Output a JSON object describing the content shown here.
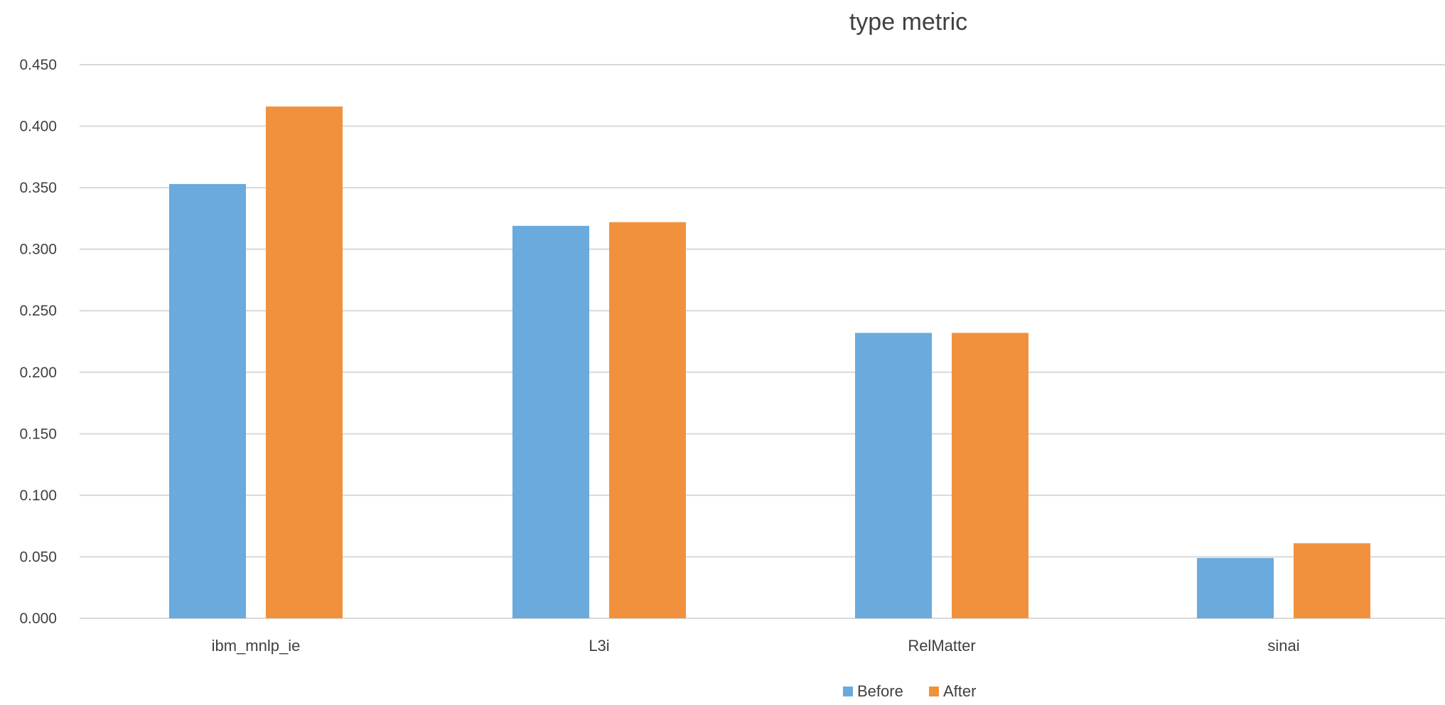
{
  "chart_data": {
    "type": "bar",
    "title": "type metric",
    "xlabel": "",
    "ylabel": "",
    "categories": [
      "ibm_mnlp_ie",
      "L3i",
      "RelMatter",
      "sinai"
    ],
    "series": [
      {
        "name": "Before",
        "values": [
          0.353,
          0.319,
          0.232,
          0.049
        ],
        "color": "#6aaadd"
      },
      {
        "name": "After",
        "values": [
          0.416,
          0.322,
          0.232,
          0.061
        ],
        "color": "#f2913d"
      }
    ],
    "ylim": [
      0,
      0.45
    ],
    "y_ticks": [
      "0.000",
      "0.050",
      "0.100",
      "0.150",
      "0.200",
      "0.250",
      "0.300",
      "0.350",
      "0.400",
      "0.450"
    ],
    "y_tick_values": [
      0,
      0.05,
      0.1,
      0.15,
      0.2,
      0.25,
      0.3,
      0.35,
      0.4,
      0.45
    ],
    "grid": true,
    "legend_position": "bottom"
  }
}
